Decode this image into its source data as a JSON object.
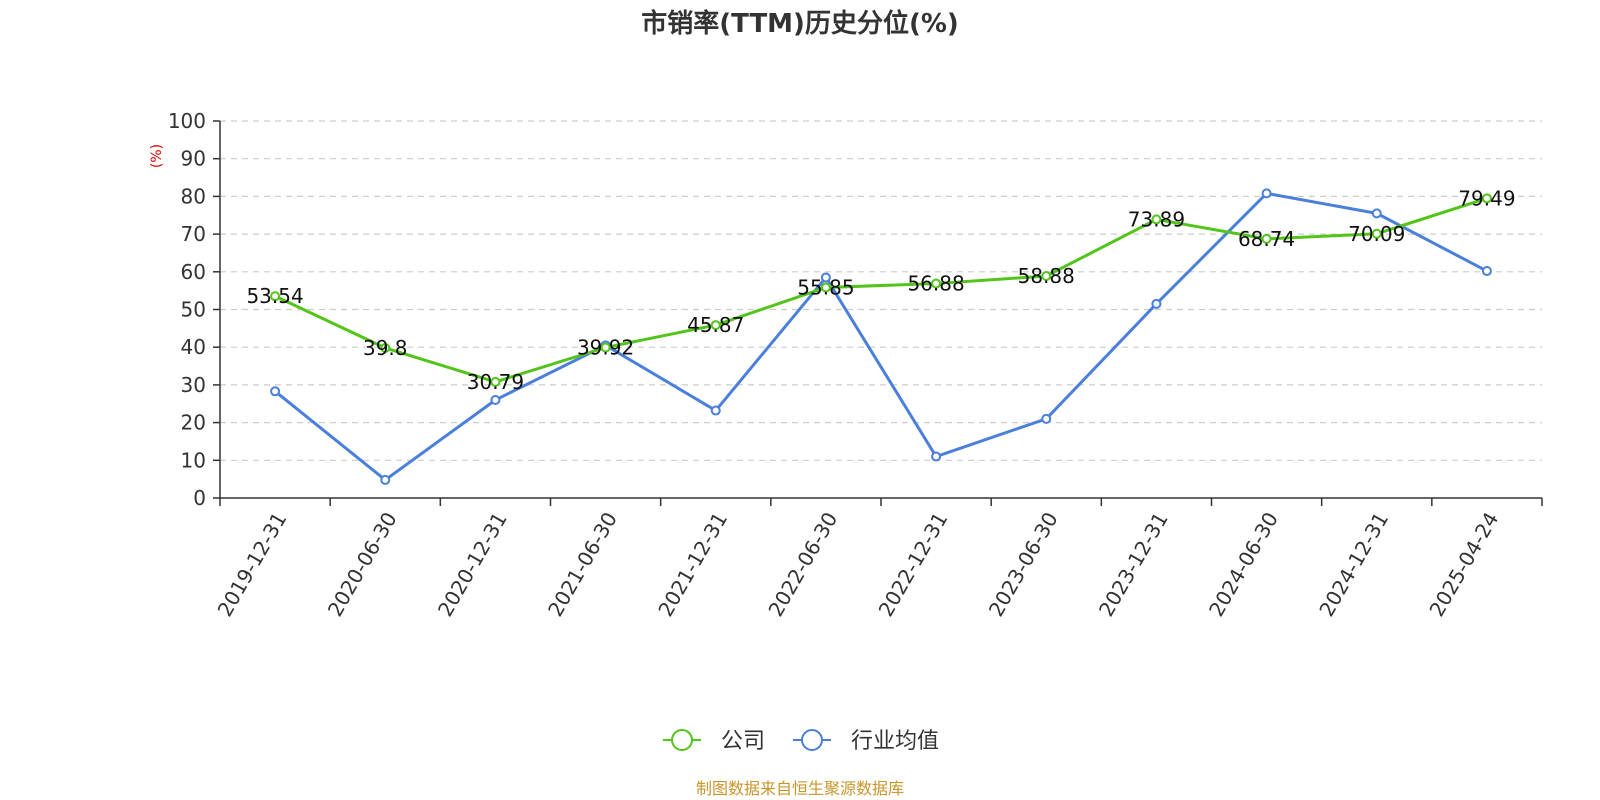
{
  "chart_data": {
    "type": "line",
    "title": "市销率(TTM)历史分位(%)",
    "ylabel": "(%)",
    "ylim": [
      0,
      100
    ],
    "yticks": [
      0,
      10,
      20,
      30,
      40,
      50,
      60,
      70,
      80,
      90,
      100
    ],
    "grid": true,
    "legend_position": "bottom",
    "categories": [
      "2019-12-31",
      "2020-06-30",
      "2020-12-31",
      "2021-06-30",
      "2021-12-31",
      "2022-06-30",
      "2022-12-31",
      "2023-06-30",
      "2023-12-31",
      "2024-06-30",
      "2024-12-31",
      "2025-04-24"
    ],
    "series": [
      {
        "name": "公司",
        "color": "#52c41a",
        "show_labels": true,
        "values": [
          53.54,
          39.8,
          30.79,
          39.92,
          45.87,
          55.85,
          56.88,
          58.88,
          73.89,
          68.74,
          70.09,
          79.49
        ]
      },
      {
        "name": "行业均值",
        "color": "#4a7fdc",
        "show_labels": false,
        "values": [
          28.3,
          4.8,
          26.0,
          40.5,
          23.2,
          58.5,
          11.0,
          21.0,
          51.5,
          80.8,
          75.5,
          60.2
        ]
      }
    ]
  },
  "source_text": "制图数据来自恒生聚源数据库"
}
